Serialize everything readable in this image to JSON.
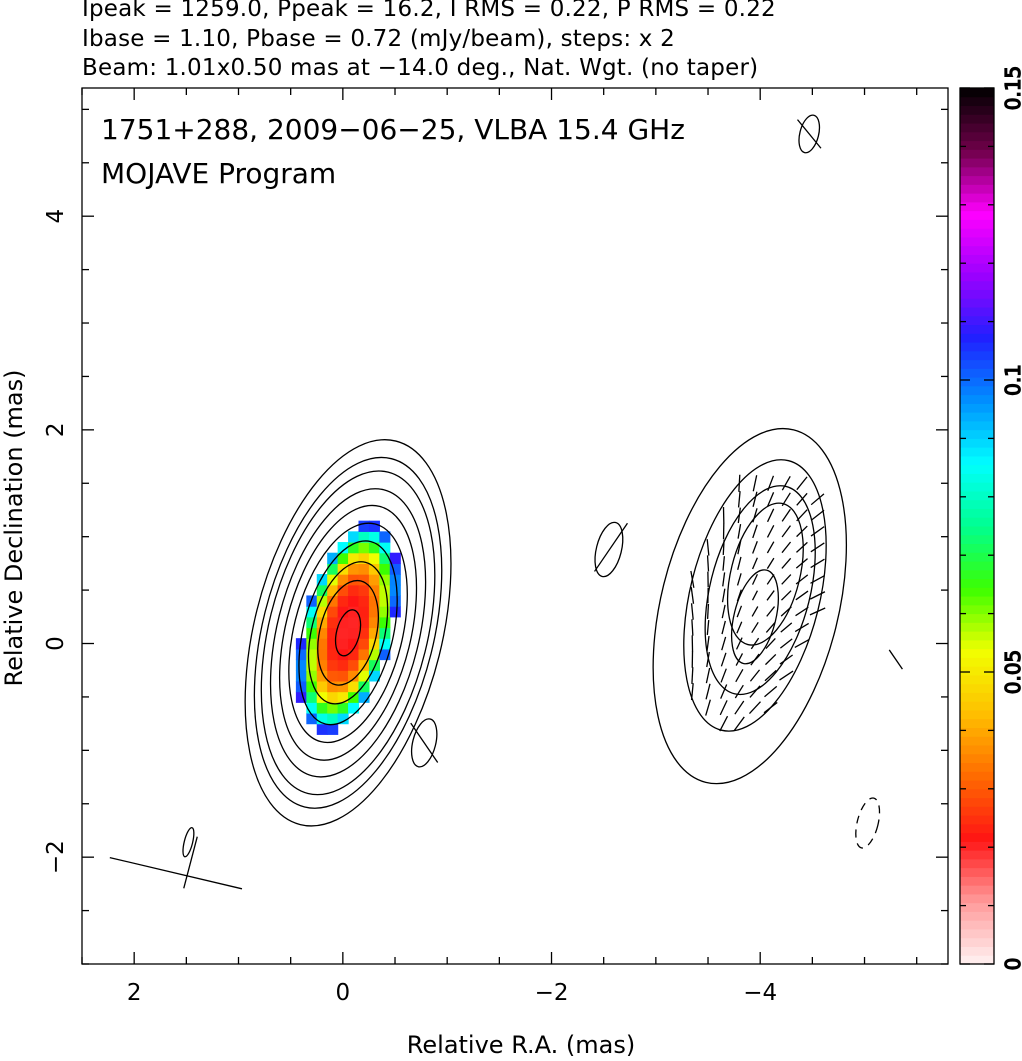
{
  "header": {
    "line1": "Ipeak = 1259.0, Ppeak = 16.2, I RMS = 0.22, P RMS = 0.22",
    "line2": "Ibase = 1.10, Pbase = 0.72 (mJy/beam), steps: x 2",
    "line3": "Beam: 1.01x0.50 mas at −14.0 deg., Nat. Wgt. (no taper)"
  },
  "chart_data": {
    "type": "heatmap",
    "title_line1": "1751+288, 2009−06−25, VLBA 15.4 GHz",
    "title_line2": "MOJAVE Program",
    "xlabel": "Relative R.A. (mas)",
    "ylabel": "Relative Declination (mas)",
    "xlim": [
      2.5,
      -5.8
    ],
    "ylim": [
      -3.0,
      5.2
    ],
    "x_ticks": [
      2,
      0,
      -2,
      -4
    ],
    "x_tick_labels": [
      "2",
      "0",
      "−2",
      "−4"
    ],
    "y_ticks": [
      -2,
      0,
      2,
      4
    ],
    "y_tick_labels": [
      "−2",
      "0",
      "2",
      "4"
    ],
    "colorbar": {
      "range": [
        0,
        0.15
      ],
      "ticks": [
        0,
        0.05,
        0.1,
        0.15
      ],
      "tick_labels": [
        "0",
        "0.05",
        "0.1",
        "0.15"
      ],
      "colormap": [
        "#fff2f2",
        "#ff9a9a",
        "#ff1414",
        "#ff6a00",
        "#ffbf00",
        "#f2ff00",
        "#3cff00",
        "#00ff90",
        "#00ffff",
        "#0090ff",
        "#2020ff",
        "#9a00ff",
        "#ff00ff",
        "#70004a",
        "#000000"
      ]
    },
    "core_contours": {
      "center": [
        -0.05,
        0.1
      ],
      "angle_deg": -14,
      "semi_axes": [
        [
          0.9,
          1.85
        ],
        [
          0.82,
          1.68
        ],
        [
          0.76,
          1.55
        ],
        [
          0.68,
          1.38
        ],
        [
          0.6,
          1.22
        ],
        [
          0.52,
          1.05
        ],
        [
          0.43,
          0.88
        ],
        [
          0.35,
          0.68
        ],
        [
          0.27,
          0.5
        ],
        [
          0.11,
          0.22
        ]
      ]
    },
    "polarization_core": {
      "center": [
        -0.05,
        0.15
      ],
      "semi_axes": [
        0.42,
        1.0
      ],
      "angle_deg": -14,
      "pixel_size": 0.1,
      "value_at_center": 0.02,
      "value_at_edge": 0.11
    },
    "jet_contours": [
      {
        "center": [
          -3.9,
          0.35
        ],
        "semi_axes": [
          0.85,
          1.7
        ],
        "angle_deg": -14
      },
      {
        "center": [
          -3.95,
          0.45
        ],
        "semi_axes": [
          0.62,
          1.3
        ],
        "angle_deg": -14
      },
      {
        "center": [
          -4.0,
          0.5
        ],
        "semi_axes": [
          0.48,
          1.0
        ],
        "angle_deg": -14
      },
      {
        "center": [
          -4.05,
          0.65
        ],
        "semi_axes": [
          0.33,
          0.68
        ],
        "angle_deg": -14
      },
      {
        "center": [
          -3.95,
          0.25
        ],
        "semi_axes": [
          0.2,
          0.45
        ],
        "angle_deg": -14
      }
    ],
    "small_contours": [
      {
        "center": [
          -2.55,
          0.88
        ],
        "semi_axes": [
          0.12,
          0.26
        ],
        "angle_deg": -14,
        "dashed": false
      },
      {
        "center": [
          -0.78,
          -0.93
        ],
        "semi_axes": [
          0.11,
          0.23
        ],
        "angle_deg": -14,
        "dashed": false
      },
      {
        "center": [
          -4.47,
          4.77
        ],
        "semi_axes": [
          0.09,
          0.18
        ],
        "angle_deg": -14,
        "dashed": false
      },
      {
        "center": [
          1.48,
          -1.86
        ],
        "semi_axes": [
          0.04,
          0.14
        ],
        "angle_deg": -14,
        "dashed": false
      },
      {
        "center": [
          -5.03,
          -1.68
        ],
        "semi_axes": [
          0.1,
          0.24
        ],
        "angle_deg": -14,
        "dashed": true
      }
    ],
    "evpa_sticks": [
      {
        "x": 1.6,
        "y": -2.15,
        "len": 1.3,
        "angle": 77
      },
      {
        "x": 1.46,
        "y": -2.05,
        "len": 0.5,
        "angle": -15
      },
      {
        "x": -2.57,
        "y": 0.9,
        "len": 0.55,
        "angle": -35
      },
      {
        "x": -0.78,
        "y": -0.93,
        "len": 0.45,
        "angle": 35
      },
      {
        "x": -4.47,
        "y": 4.77,
        "len": 0.35,
        "angle": 40
      },
      {
        "x": -5.3,
        "y": -0.15,
        "len": 0.22,
        "angle": 35
      }
    ],
    "jet_evpa_field": {
      "xrange": [
        -3.05,
        -4.6
      ],
      "yrange": [
        -1.05,
        1.5
      ],
      "step": 0.15
    }
  }
}
